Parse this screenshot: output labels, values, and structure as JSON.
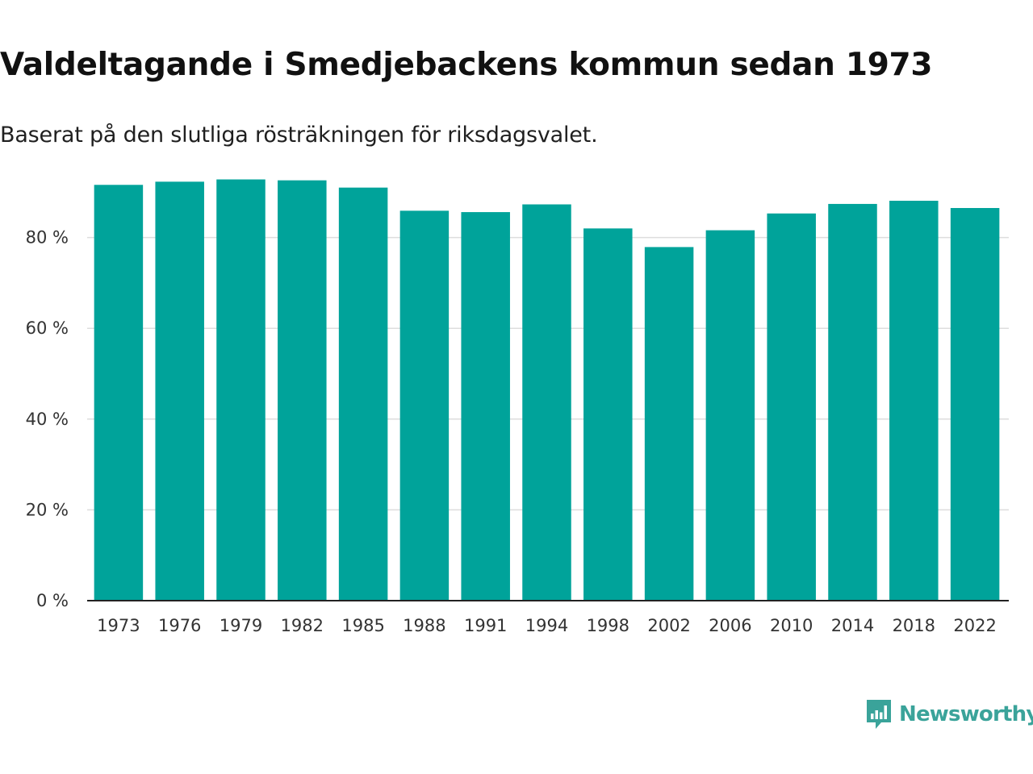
{
  "header": {
    "title": "Valdeltagande i Smedjebackens kommun sedan 1973",
    "subtitle": "Baserat på den slutliga rösträkningen för riksdagsvalet."
  },
  "brand": {
    "name": "Newsworthy",
    "color": "#3aa39a"
  },
  "colors": {
    "bar": "#00a39a",
    "grid": "#dddddd",
    "axis": "#222222"
  },
  "chart_data": {
    "type": "bar",
    "title": "Valdeltagande i Smedjebackens kommun sedan 1973",
    "subtitle": "Baserat på den slutliga rösträkningen för riksdagsvalet.",
    "xlabel": "",
    "ylabel": "",
    "categories": [
      "1973",
      "1976",
      "1979",
      "1982",
      "1985",
      "1988",
      "1991",
      "1994",
      "1998",
      "2002",
      "2006",
      "2010",
      "2014",
      "2018",
      "2022"
    ],
    "values": [
      91.6,
      92.3,
      92.8,
      92.6,
      91.0,
      85.9,
      85.6,
      87.3,
      82.0,
      77.9,
      81.6,
      85.3,
      87.4,
      88.1,
      86.5
    ],
    "ylim": [
      0,
      100
    ],
    "yticks": [
      0,
      20,
      40,
      60,
      80
    ],
    "ytick_labels": [
      "0 %",
      "20 %",
      "40 %",
      "60 %",
      "80 %"
    ],
    "grid": true,
    "legend": "none"
  }
}
